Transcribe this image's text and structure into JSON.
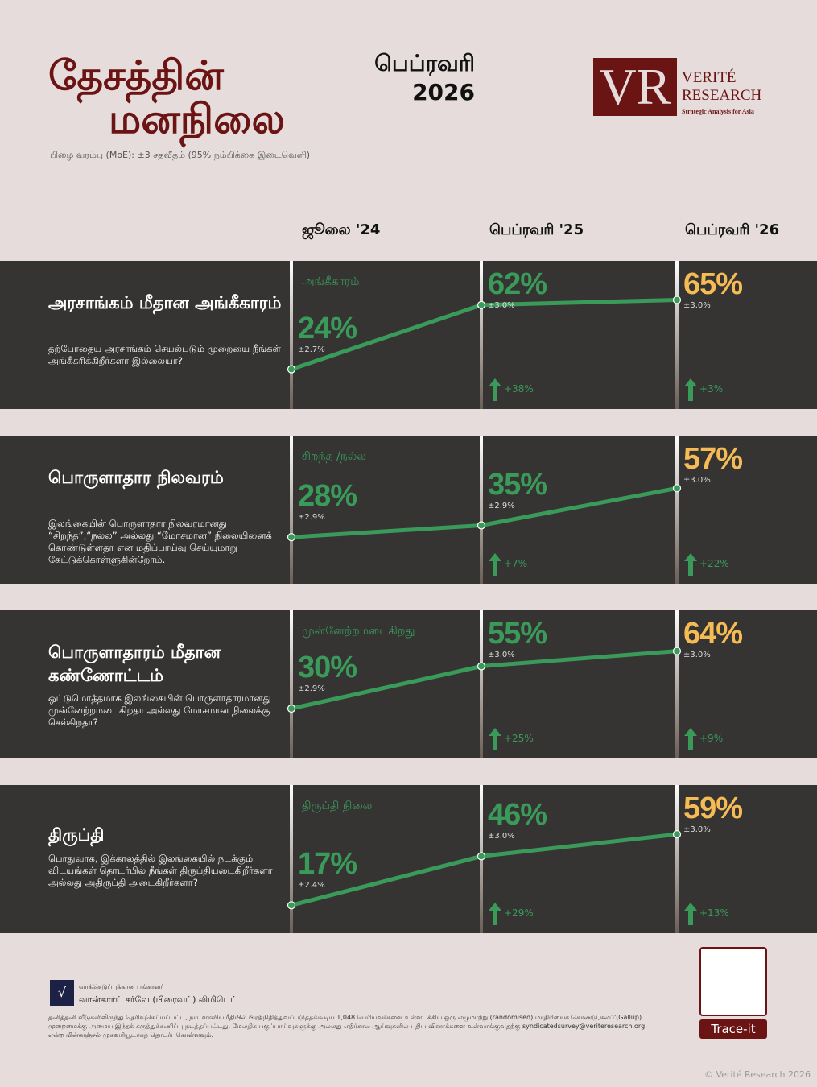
{
  "header": {
    "title_line1": "தேசத்தின்",
    "title_line2": "மனநிலை",
    "month": "பெப்ரவரி",
    "year": "2026",
    "moe": "பிழை வரம்பு (MoE): ±3 சதவீதம் (95% நம்பிக்கை இடைவெளி)"
  },
  "logo": {
    "letters": "VR",
    "name1": "VERITÉ",
    "name2": "RESEARCH",
    "tagline": "Strategic Analysis for Asia"
  },
  "columns": [
    "ஜூலை '24",
    "பெப்ரவரி '25",
    "பெப்ரவரி '26"
  ],
  "colors": {
    "accent": "#3a9a5a",
    "current": "#f5bb55",
    "title": "#6b1414",
    "panel": "#353433"
  },
  "panels": [
    {
      "title": "அரசாங்கம் மீதான அங்கீகாரம்",
      "question": "தற்போதைய அரசாங்கம் செயல்படும் முறையை நீங்கள் அங்கீகரிக்கிறீர்களா இல்லையா?",
      "category": "அங்கீகாரம்",
      "values": [
        24,
        62,
        65
      ],
      "labels": [
        "24%",
        "62%",
        "65%"
      ],
      "errors": [
        "±2.7%",
        "±3.0%",
        "±3.0%"
      ],
      "changes": [
        "+38%",
        "+3%"
      ]
    },
    {
      "title": "பொருளாதார நிலவரம்",
      "question": "இலங்கையின் பொருளாதார நிலவரமானது “சிறந்த”,“நல்ல” அல்லது “மோசமான” நிலையினைக் கொண்டுள்ளதா என மதிப்பாய்வு செய்யுமாறு கேட்டுக்கொள்ளுகின்றோம்.",
      "category": "சிறந்த /நல்ல",
      "values": [
        28,
        35,
        57
      ],
      "labels": [
        "28%",
        "35%",
        "57%"
      ],
      "errors": [
        "±2.9%",
        "±2.9%",
        "±3.0%"
      ],
      "changes": [
        "+7%",
        "+22%"
      ]
    },
    {
      "title": "பொருளாதாரம் மீதான கண்ணோட்டம்",
      "question": "ஒட்டுமொத்தமாக இலங்கையின் பொருளாதாரமானது முன்னேற்றமடைகிறதா அல்லது மோசமான நிலைக்கு செல்கிறதா?",
      "category": "முன்னேற்றமடைகிறது",
      "values": [
        30,
        55,
        64
      ],
      "labels": [
        "30%",
        "55%",
        "64%"
      ],
      "errors": [
        "±2.9%",
        "±3.0%",
        "±3.0%"
      ],
      "changes": [
        "+25%",
        "+9%"
      ]
    },
    {
      "title": "திருப்தி",
      "question": "பொதுவாக, இக்காலத்தில் இலங்கையில் நடக்கும் விடயங்கள் தொடர்பில் நீங்கள் திருப்தியடைகிறீர்களா அல்லது அதிருப்தி அடைகிறீர்களா?",
      "category": "திருப்தி நிலை",
      "values": [
        17,
        46,
        59
      ],
      "labels": [
        "17%",
        "46%",
        "59%"
      ],
      "errors": [
        "±2.4%",
        "±3.0%",
        "±3.0%"
      ],
      "changes": [
        "+29%",
        "+13%"
      ]
    }
  ],
  "footer": {
    "sponsor_label": "வாக்கெடுப்புக்கான பங்காளர்",
    "sponsor": "வான்கார்ட் சர்வே (பிரைவட்) லிமிடெட்",
    "note": "தனித்தனி வீடுகளிலிருந்து தெரிவுசெய்யப்பட்ட, நாடளாவிய ரீதியில் பிரதிநிதித்துவப்படுத்தக்கூடிய 1,048 பெரியவர்களை உள்ளடக்கிய ஒரு எழுமாற்று (randomised) மாதிரியைக் கொண்டு,கலப்'(Gallup) முறைமைக்கு அமைய இந்தக் கருத்துக்கணிப்பு நடத்தப்பட்டது. மேலதிக பகுப்பாய்வுகளுக்கு அல்லது எதிர்கால ஆய்வுகளில் புதிய வினாக்களை உள்வாங்குவதற்கு syndicatedsurvey@veriteresearch.org என்ற மின்னஞ்சல் முகவரியூடாகத் தொடர்புகொள்ளவும்.",
    "qr_label": "Trace-it",
    "copyright": "© Verité Research 2026"
  }
}
